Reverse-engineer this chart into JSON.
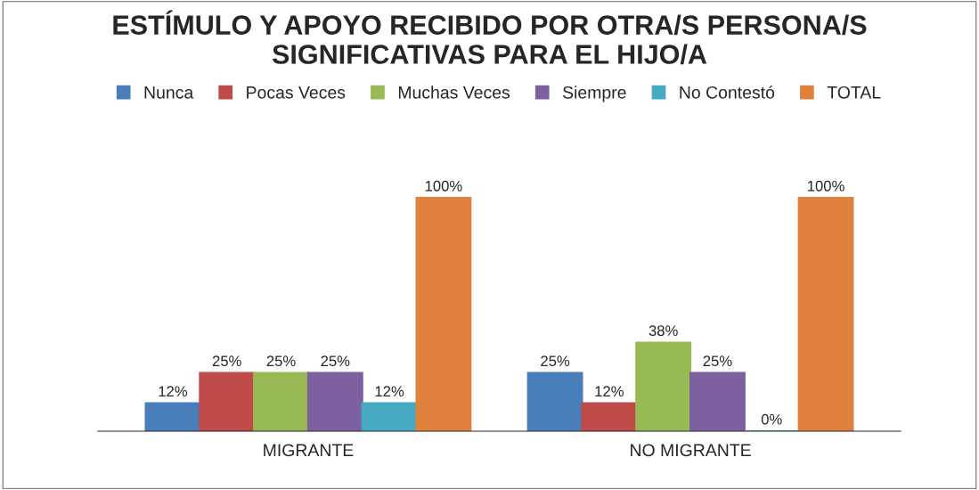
{
  "chart_data": {
    "type": "bar",
    "title": "ESTÍMULO Y APOYO RECIBIDO POR OTRA/S PERSONA/S\nSIGNIFICATIVAS PARA EL HIJO/A",
    "categories": [
      "MIGRANTE",
      "NO MIGRANTE"
    ],
    "series": [
      {
        "name": "Nunca",
        "color": "#4a7ebb",
        "values": [
          12,
          25
        ],
        "value_labels": [
          "12%",
          "25%"
        ]
      },
      {
        "name": "Pocas Veces",
        "color": "#be4b48",
        "values": [
          25,
          12
        ],
        "value_labels": [
          "25%",
          "12%"
        ]
      },
      {
        "name": "Muchas Veces",
        "color": "#98b954",
        "values": [
          25,
          38
        ],
        "value_labels": [
          "25%",
          "38%"
        ]
      },
      {
        "name": "Siempre",
        "color": "#7d60a0",
        "values": [
          25,
          25
        ],
        "value_labels": [
          "25%",
          "25%"
        ]
      },
      {
        "name": "No Contestó",
        "color": "#46aac5",
        "values": [
          12,
          0
        ],
        "value_labels": [
          "12%",
          "0%"
        ]
      },
      {
        "name": "TOTAL",
        "color": "#e0823d",
        "values": [
          100,
          100
        ],
        "value_labels": [
          "100%",
          "100%"
        ]
      }
    ],
    "legend": "top",
    "grid": false
  }
}
